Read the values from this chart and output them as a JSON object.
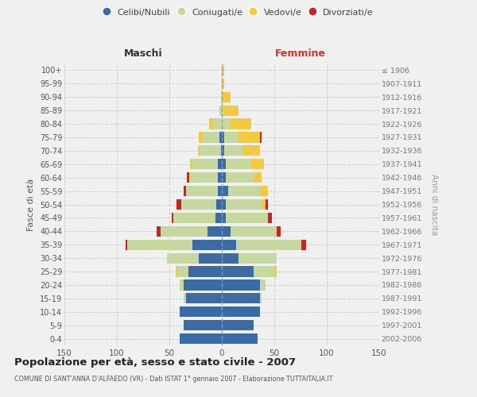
{
  "age_groups": [
    "0-4",
    "5-9",
    "10-14",
    "15-19",
    "20-24",
    "25-29",
    "30-34",
    "35-39",
    "40-44",
    "45-49",
    "50-54",
    "55-59",
    "60-64",
    "65-69",
    "70-74",
    "75-79",
    "80-84",
    "85-89",
    "90-94",
    "95-99",
    "100+"
  ],
  "birth_years": [
    "2002-2006",
    "1997-2001",
    "1992-1996",
    "1987-1991",
    "1982-1986",
    "1977-1981",
    "1972-1976",
    "1967-1971",
    "1962-1966",
    "1957-1961",
    "1952-1956",
    "1947-1951",
    "1942-1946",
    "1937-1941",
    "1932-1936",
    "1927-1931",
    "1922-1926",
    "1917-1921",
    "1912-1916",
    "1907-1911",
    "≤ 1906"
  ],
  "males": {
    "celibi": [
      40,
      36,
      40,
      34,
      36,
      32,
      22,
      28,
      14,
      6,
      5,
      4,
      4,
      4,
      1,
      2,
      0,
      0,
      0,
      0,
      0
    ],
    "coniugati": [
      0,
      0,
      0,
      2,
      4,
      10,
      30,
      62,
      44,
      40,
      34,
      30,
      26,
      24,
      20,
      16,
      8,
      2,
      1,
      0,
      0
    ],
    "vedovi": [
      0,
      0,
      0,
      0,
      0,
      2,
      0,
      0,
      0,
      0,
      0,
      0,
      1,
      2,
      2,
      4,
      4,
      0,
      0,
      0,
      0
    ],
    "divorziati": [
      0,
      0,
      0,
      0,
      0,
      0,
      0,
      2,
      4,
      2,
      4,
      2,
      2,
      0,
      0,
      0,
      0,
      0,
      0,
      0,
      0
    ]
  },
  "females": {
    "nubili": [
      34,
      30,
      36,
      36,
      36,
      30,
      16,
      14,
      8,
      4,
      4,
      6,
      4,
      4,
      2,
      2,
      0,
      0,
      0,
      0,
      0
    ],
    "coniugate": [
      0,
      0,
      0,
      2,
      6,
      20,
      36,
      62,
      44,
      40,
      34,
      30,
      26,
      24,
      18,
      14,
      8,
      2,
      0,
      0,
      0
    ],
    "vedove": [
      0,
      0,
      0,
      0,
      0,
      2,
      0,
      0,
      0,
      0,
      4,
      8,
      8,
      12,
      16,
      20,
      20,
      14,
      8,
      2,
      2
    ],
    "divorziate": [
      0,
      0,
      0,
      0,
      0,
      0,
      0,
      4,
      4,
      4,
      2,
      0,
      0,
      0,
      0,
      2,
      0,
      0,
      0,
      0,
      0
    ]
  },
  "colors": {
    "celibi_nubili": "#3B6BA5",
    "coniugati": "#C5D89D",
    "vedovi": "#F5C842",
    "divorziati": "#CC2222"
  },
  "title": "Popolazione per età, sesso e stato civile - 2007",
  "subtitle": "COMUNE DI SANT'ANNA D'ALFAEDO (VR) - Dati ISTAT 1° gennaio 2007 - Elaborazione TUTTAITALIA.IT",
  "ylabel_left": "Fasce di età",
  "ylabel_right": "Anni di nascita",
  "xlabel_left": "Maschi",
  "xlabel_right": "Femmine",
  "xlim": 150,
  "bg_color": "#f0f0f0",
  "grid_color": "#cccccc"
}
